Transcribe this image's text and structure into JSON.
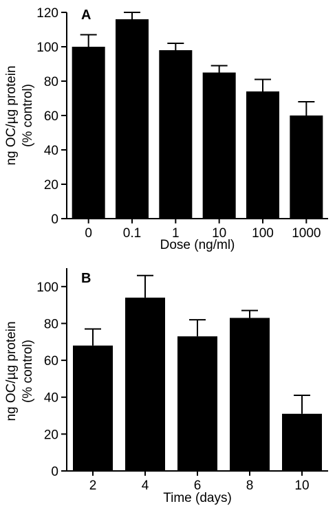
{
  "chart_data": [
    {
      "type": "bar",
      "panel_label": "A",
      "categories": [
        "0",
        "0.1",
        "1",
        "10",
        "100",
        "1000"
      ],
      "values": [
        100,
        116,
        98,
        85,
        74,
        60
      ],
      "errors": [
        7,
        4,
        4,
        4,
        7,
        8
      ],
      "xlabel": "Dose (ng/ml)",
      "ylabel_line1": "ng OC/µg protein",
      "ylabel_line2": "(% control)",
      "ylim": [
        0,
        120
      ],
      "yticks": [
        "0",
        "20",
        "40",
        "60",
        "80",
        "100",
        "120"
      ],
      "grid": false,
      "bar_color": "#000000"
    },
    {
      "type": "bar",
      "panel_label": "B",
      "categories": [
        "2",
        "4",
        "6",
        "8",
        "10"
      ],
      "values": [
        68,
        94,
        73,
        83,
        31
      ],
      "errors": [
        9,
        12,
        9,
        4,
        10
      ],
      "xlabel": "Time (days)",
      "ylabel_line1": "ng OC/µg protein",
      "ylabel_line2": "(% control)",
      "ylim": [
        0,
        110
      ],
      "yticks": [
        "0",
        "20",
        "40",
        "60",
        "80",
        "100"
      ],
      "grid": false,
      "bar_color": "#000000"
    }
  ]
}
